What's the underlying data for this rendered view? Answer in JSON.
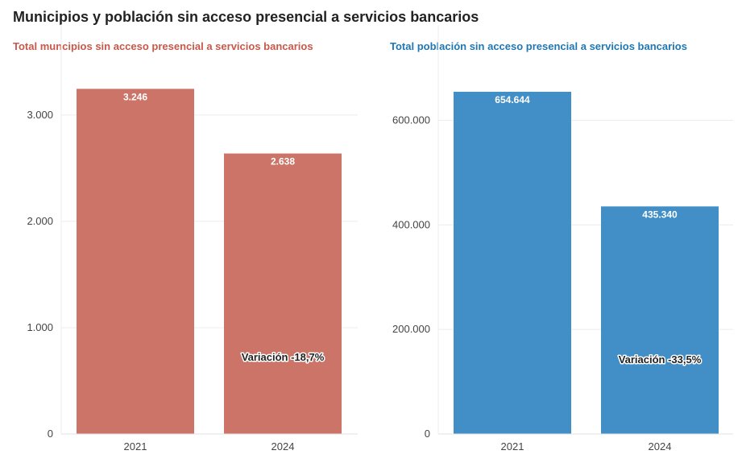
{
  "title": "Municipios y población sin acceso presencial a servicios bancarios",
  "chart_data": [
    {
      "type": "bar",
      "title": "Total muncipios sin acceso presencial a servicios bancarios",
      "title_color": "#c8584a",
      "bar_color": "#cc7468",
      "categories": [
        "2021",
        "2024"
      ],
      "values": [
        3246,
        2638
      ],
      "value_labels": [
        "3.246",
        "2.638"
      ],
      "ylim": [
        0,
        3400
      ],
      "yticks": [
        0,
        1000,
        2000,
        3000
      ],
      "ytick_labels": [
        "0",
        "1.000",
        "2.000",
        "3.000"
      ],
      "annotation": "Variación -18,7%",
      "grid": true
    },
    {
      "type": "bar",
      "title": "Total población sin acceso presencial a servicios bancarios",
      "title_color": "#1f77b4",
      "bar_color": "#418fc6",
      "categories": [
        "2021",
        "2024"
      ],
      "values": [
        654644,
        435340
      ],
      "value_labels": [
        "654.644",
        "435.340"
      ],
      "ylim": [
        0,
        690000
      ],
      "yticks": [
        0,
        200000,
        400000,
        600000
      ],
      "ytick_labels": [
        "0",
        "200.000",
        "400.000",
        "600.000"
      ],
      "annotation": "Variación -33,5%",
      "grid": true
    }
  ]
}
